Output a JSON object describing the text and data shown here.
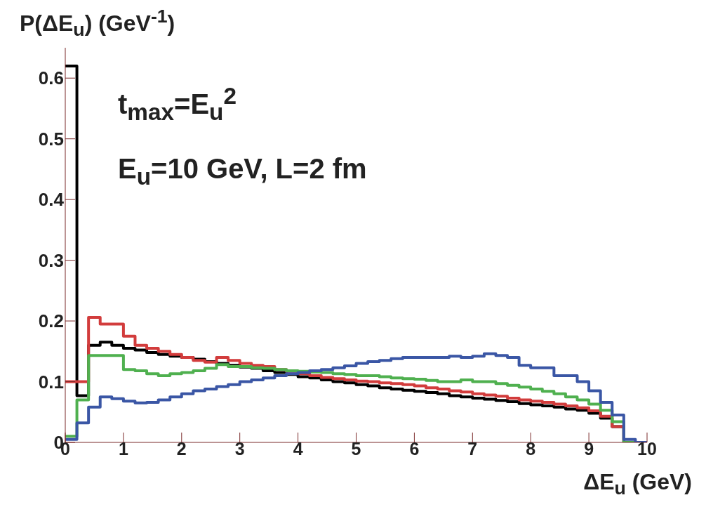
{
  "chart_data": {
    "type": "histogram",
    "xlabel": "ΔE$_{u}$ (GeV)",
    "ylabel": "P(ΔE$_{u}$) (GeV$^{-1}$)",
    "annotations": [
      "t$_{max}$=E$_{u}$$^{2}$",
      "E$_{u}$=10 GeV, L=2 fm"
    ],
    "bins": [
      0,
      0.2,
      0.4,
      0.6,
      0.8,
      1,
      1.2,
      1.4,
      1.6,
      1.8,
      2,
      2.2,
      2.4,
      2.6,
      2.8,
      3,
      3.2,
      3.4,
      3.6,
      3.8,
      4,
      4.2,
      4.4,
      4.6,
      4.8,
      5,
      5.2,
      5.4,
      5.6,
      5.8,
      6,
      6.2,
      6.4,
      6.6,
      6.8,
      7,
      7.2,
      7.4,
      7.6,
      7.8,
      8,
      8.2,
      8.4,
      8.6,
      8.8,
      9,
      9.2,
      9.4,
      9.6,
      9.8,
      10
    ],
    "series": [
      {
        "color": "#000000",
        "values": [
          0.62,
          0.077,
          0.16,
          0.165,
          0.16,
          0.155,
          0.152,
          0.148,
          0.145,
          0.142,
          0.14,
          0.137,
          0.133,
          0.13,
          0.127,
          0.124,
          0.122,
          0.118,
          0.115,
          0.112,
          0.108,
          0.106,
          0.103,
          0.1,
          0.098,
          0.095,
          0.093,
          0.09,
          0.088,
          0.086,
          0.084,
          0.082,
          0.08,
          0.077,
          0.075,
          0.073,
          0.071,
          0.069,
          0.067,
          0.064,
          0.062,
          0.06,
          0.058,
          0.055,
          0.053,
          0.048,
          0.04,
          0.026,
          0,
          0
        ]
      },
      {
        "color": "#d23c3c",
        "values": [
          0.1,
          0.1,
          0.206,
          0.195,
          0.195,
          0.175,
          0.16,
          0.155,
          0.15,
          0.145,
          0.14,
          0.135,
          0.132,
          0.14,
          0.135,
          0.13,
          0.127,
          0.125,
          0.12,
          0.117,
          0.113,
          0.11,
          0.107,
          0.105,
          0.103,
          0.101,
          0.1,
          0.098,
          0.097,
          0.095,
          0.093,
          0.09,
          0.088,
          0.085,
          0.083,
          0.08,
          0.078,
          0.076,
          0.073,
          0.07,
          0.068,
          0.066,
          0.063,
          0.06,
          0.057,
          0.052,
          0.043,
          0.026,
          0,
          0
        ]
      },
      {
        "color": "#4fb04f",
        "values": [
          0.01,
          0.07,
          0.143,
          0.143,
          0.143,
          0.12,
          0.118,
          0.113,
          0.11,
          0.113,
          0.115,
          0.118,
          0.122,
          0.128,
          0.125,
          0.125,
          0.123,
          0.122,
          0.12,
          0.118,
          0.117,
          0.116,
          0.115,
          0.113,
          0.112,
          0.11,
          0.11,
          0.108,
          0.106,
          0.105,
          0.104,
          0.102,
          0.1,
          0.1,
          0.103,
          0.1,
          0.1,
          0.097,
          0.094,
          0.091,
          0.088,
          0.084,
          0.08,
          0.075,
          0.07,
          0.063,
          0.053,
          0.034,
          0,
          0
        ]
      },
      {
        "color": "#3a56a5",
        "values": [
          0.005,
          0.032,
          0.058,
          0.075,
          0.072,
          0.068,
          0.065,
          0.066,
          0.07,
          0.075,
          0.08,
          0.085,
          0.088,
          0.092,
          0.095,
          0.1,
          0.103,
          0.106,
          0.11,
          0.113,
          0.115,
          0.118,
          0.12,
          0.123,
          0.126,
          0.13,
          0.133,
          0.135,
          0.138,
          0.14,
          0.14,
          0.14,
          0.14,
          0.142,
          0.14,
          0.142,
          0.146,
          0.143,
          0.14,
          0.127,
          0.123,
          0.123,
          0.11,
          0.11,
          0.1,
          0.085,
          0.066,
          0.045,
          0.005,
          0
        ]
      }
    ],
    "xlim": [
      0,
      10
    ],
    "xticks": [
      0,
      1,
      2,
      3,
      4,
      5,
      6,
      7,
      8,
      9,
      10
    ],
    "ylim": [
      0,
      0.65
    ],
    "yticks": [
      0,
      0.1,
      0.2,
      0.3,
      0.4,
      0.5,
      0.6
    ]
  }
}
